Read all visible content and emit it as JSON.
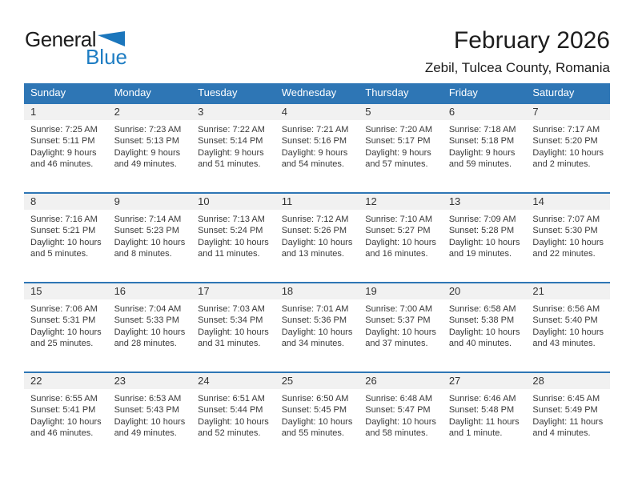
{
  "logo": {
    "general": "General",
    "blue": "Blue"
  },
  "header": {
    "title": "February 2026",
    "subtitle": "Zebil, Tulcea County, Romania"
  },
  "weekdays": [
    "Sunday",
    "Monday",
    "Tuesday",
    "Wednesday",
    "Thursday",
    "Friday",
    "Saturday"
  ],
  "colors": {
    "header_bg": "#2E76B5",
    "row_divider": "#2E76B5",
    "day_strip_bg": "#F1F1F1",
    "logo_blue": "#1E7DC3"
  },
  "weeks": [
    [
      {
        "day": "1",
        "sunrise": "Sunrise: 7:25 AM",
        "sunset": "Sunset: 5:11 PM",
        "daylight_line1": "Daylight: 9 hours",
        "daylight_line2": "and 46 minutes."
      },
      {
        "day": "2",
        "sunrise": "Sunrise: 7:23 AM",
        "sunset": "Sunset: 5:13 PM",
        "daylight_line1": "Daylight: 9 hours",
        "daylight_line2": "and 49 minutes."
      },
      {
        "day": "3",
        "sunrise": "Sunrise: 7:22 AM",
        "sunset": "Sunset: 5:14 PM",
        "daylight_line1": "Daylight: 9 hours",
        "daylight_line2": "and 51 minutes."
      },
      {
        "day": "4",
        "sunrise": "Sunrise: 7:21 AM",
        "sunset": "Sunset: 5:16 PM",
        "daylight_line1": "Daylight: 9 hours",
        "daylight_line2": "and 54 minutes."
      },
      {
        "day": "5",
        "sunrise": "Sunrise: 7:20 AM",
        "sunset": "Sunset: 5:17 PM",
        "daylight_line1": "Daylight: 9 hours",
        "daylight_line2": "and 57 minutes."
      },
      {
        "day": "6",
        "sunrise": "Sunrise: 7:18 AM",
        "sunset": "Sunset: 5:18 PM",
        "daylight_line1": "Daylight: 9 hours",
        "daylight_line2": "and 59 minutes."
      },
      {
        "day": "7",
        "sunrise": "Sunrise: 7:17 AM",
        "sunset": "Sunset: 5:20 PM",
        "daylight_line1": "Daylight: 10 hours",
        "daylight_line2": "and 2 minutes."
      }
    ],
    [
      {
        "day": "8",
        "sunrise": "Sunrise: 7:16 AM",
        "sunset": "Sunset: 5:21 PM",
        "daylight_line1": "Daylight: 10 hours",
        "daylight_line2": "and 5 minutes."
      },
      {
        "day": "9",
        "sunrise": "Sunrise: 7:14 AM",
        "sunset": "Sunset: 5:23 PM",
        "daylight_line1": "Daylight: 10 hours",
        "daylight_line2": "and 8 minutes."
      },
      {
        "day": "10",
        "sunrise": "Sunrise: 7:13 AM",
        "sunset": "Sunset: 5:24 PM",
        "daylight_line1": "Daylight: 10 hours",
        "daylight_line2": "and 11 minutes."
      },
      {
        "day": "11",
        "sunrise": "Sunrise: 7:12 AM",
        "sunset": "Sunset: 5:26 PM",
        "daylight_line1": "Daylight: 10 hours",
        "daylight_line2": "and 13 minutes."
      },
      {
        "day": "12",
        "sunrise": "Sunrise: 7:10 AM",
        "sunset": "Sunset: 5:27 PM",
        "daylight_line1": "Daylight: 10 hours",
        "daylight_line2": "and 16 minutes."
      },
      {
        "day": "13",
        "sunrise": "Sunrise: 7:09 AM",
        "sunset": "Sunset: 5:28 PM",
        "daylight_line1": "Daylight: 10 hours",
        "daylight_line2": "and 19 minutes."
      },
      {
        "day": "14",
        "sunrise": "Sunrise: 7:07 AM",
        "sunset": "Sunset: 5:30 PM",
        "daylight_line1": "Daylight: 10 hours",
        "daylight_line2": "and 22 minutes."
      }
    ],
    [
      {
        "day": "15",
        "sunrise": "Sunrise: 7:06 AM",
        "sunset": "Sunset: 5:31 PM",
        "daylight_line1": "Daylight: 10 hours",
        "daylight_line2": "and 25 minutes."
      },
      {
        "day": "16",
        "sunrise": "Sunrise: 7:04 AM",
        "sunset": "Sunset: 5:33 PM",
        "daylight_line1": "Daylight: 10 hours",
        "daylight_line2": "and 28 minutes."
      },
      {
        "day": "17",
        "sunrise": "Sunrise: 7:03 AM",
        "sunset": "Sunset: 5:34 PM",
        "daylight_line1": "Daylight: 10 hours",
        "daylight_line2": "and 31 minutes."
      },
      {
        "day": "18",
        "sunrise": "Sunrise: 7:01 AM",
        "sunset": "Sunset: 5:36 PM",
        "daylight_line1": "Daylight: 10 hours",
        "daylight_line2": "and 34 minutes."
      },
      {
        "day": "19",
        "sunrise": "Sunrise: 7:00 AM",
        "sunset": "Sunset: 5:37 PM",
        "daylight_line1": "Daylight: 10 hours",
        "daylight_line2": "and 37 minutes."
      },
      {
        "day": "20",
        "sunrise": "Sunrise: 6:58 AM",
        "sunset": "Sunset: 5:38 PM",
        "daylight_line1": "Daylight: 10 hours",
        "daylight_line2": "and 40 minutes."
      },
      {
        "day": "21",
        "sunrise": "Sunrise: 6:56 AM",
        "sunset": "Sunset: 5:40 PM",
        "daylight_line1": "Daylight: 10 hours",
        "daylight_line2": "and 43 minutes."
      }
    ],
    [
      {
        "day": "22",
        "sunrise": "Sunrise: 6:55 AM",
        "sunset": "Sunset: 5:41 PM",
        "daylight_line1": "Daylight: 10 hours",
        "daylight_line2": "and 46 minutes."
      },
      {
        "day": "23",
        "sunrise": "Sunrise: 6:53 AM",
        "sunset": "Sunset: 5:43 PM",
        "daylight_line1": "Daylight: 10 hours",
        "daylight_line2": "and 49 minutes."
      },
      {
        "day": "24",
        "sunrise": "Sunrise: 6:51 AM",
        "sunset": "Sunset: 5:44 PM",
        "daylight_line1": "Daylight: 10 hours",
        "daylight_line2": "and 52 minutes."
      },
      {
        "day": "25",
        "sunrise": "Sunrise: 6:50 AM",
        "sunset": "Sunset: 5:45 PM",
        "daylight_line1": "Daylight: 10 hours",
        "daylight_line2": "and 55 minutes."
      },
      {
        "day": "26",
        "sunrise": "Sunrise: 6:48 AM",
        "sunset": "Sunset: 5:47 PM",
        "daylight_line1": "Daylight: 10 hours",
        "daylight_line2": "and 58 minutes."
      },
      {
        "day": "27",
        "sunrise": "Sunrise: 6:46 AM",
        "sunset": "Sunset: 5:48 PM",
        "daylight_line1": "Daylight: 11 hours",
        "daylight_line2": "and 1 minute."
      },
      {
        "day": "28",
        "sunrise": "Sunrise: 6:45 AM",
        "sunset": "Sunset: 5:49 PM",
        "daylight_line1": "Daylight: 11 hours",
        "daylight_line2": "and 4 minutes."
      }
    ]
  ]
}
